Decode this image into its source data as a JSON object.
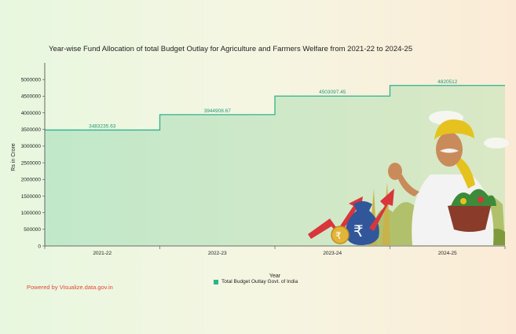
{
  "chart_data": {
    "type": "area",
    "title": "Year-wise Fund Allocation of total Budget Outlay for Agriculture and Farmers Welfare from 2021-22 to 2024-25",
    "xlabel": "Year",
    "ylabel": "Rs in Crore",
    "categories": [
      "2021-22",
      "2022-23",
      "2023-24",
      "2024-25"
    ],
    "series": [
      {
        "name": "Total Budget Outlay Govt. of India",
        "values": [
          3483235.63,
          3944908.67,
          4503097.45,
          4820512
        ]
      }
    ],
    "data_labels": [
      "3483235.63",
      "3944908.67",
      "4503097.45",
      "4820512"
    ],
    "ylim": [
      0,
      5500000
    ],
    "yticks": [
      0,
      500000,
      1000000,
      1500000,
      2000000,
      2500000,
      3000000,
      3500000,
      4000000,
      4500000,
      5000000
    ],
    "ytick_labels": [
      "0",
      "500000",
      "1000000",
      "1500000",
      "2000000",
      "2500000",
      "3000000",
      "3500000",
      "4000000",
      "4500000",
      "5000000"
    ],
    "grid": false,
    "legend_position": "bottom",
    "colors": {
      "series": "#2db38c",
      "fill": "#bfe7c9",
      "label": "#1f9a74"
    }
  },
  "footer": {
    "powered_by": "Powered by Visualize.data.gov.in"
  },
  "illustration": {
    "name": "farmer-illustration",
    "colors": {
      "turban": "#e6c21f",
      "skin": "#c98b5a",
      "shirt": "#f3f3f3",
      "fields": "#a7b85a",
      "arrow": "#d8363a",
      "money-bag": "#31569a"
    }
  }
}
